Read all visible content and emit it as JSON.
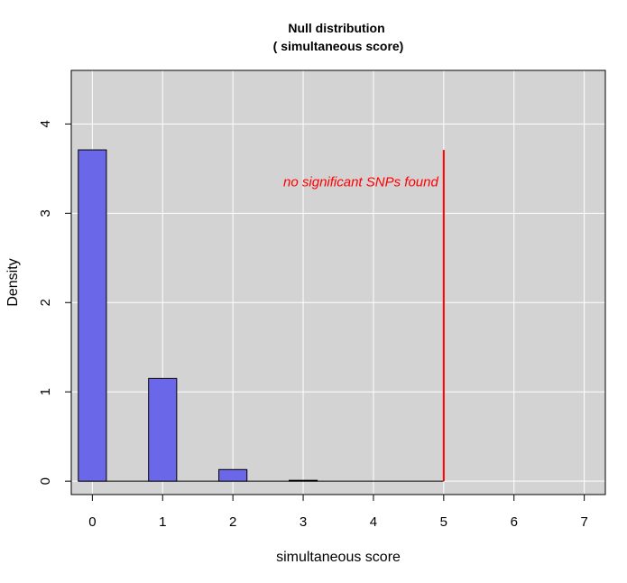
{
  "chart_data": {
    "type": "bar",
    "title": "Null distribution",
    "subtitle": "( simultaneous score)",
    "xlabel": "simultaneous score",
    "ylabel": "Density",
    "xlim": [
      -0.3,
      7.3
    ],
    "ylim": [
      -0.15,
      4.6
    ],
    "x_ticks": [
      0,
      1,
      2,
      3,
      4,
      5,
      6,
      7
    ],
    "y_ticks": [
      0,
      1,
      2,
      3,
      4
    ],
    "grid": true,
    "background_color": "#d3d3d3",
    "bar_color": "#6a67e8",
    "bar_width": 0.2,
    "bars": [
      {
        "x": 0,
        "value": 3.71
      },
      {
        "x": 1,
        "value": 1.15
      },
      {
        "x": 2,
        "value": 0.13
      },
      {
        "x": 3,
        "value": 0.01
      }
    ],
    "threshold": {
      "x": 5,
      "ymax": 3.71,
      "color": "#ff0000"
    },
    "annotation": {
      "text": "no significant SNPs found",
      "x": 5,
      "y": 3.35,
      "color": "#ff0000"
    }
  }
}
